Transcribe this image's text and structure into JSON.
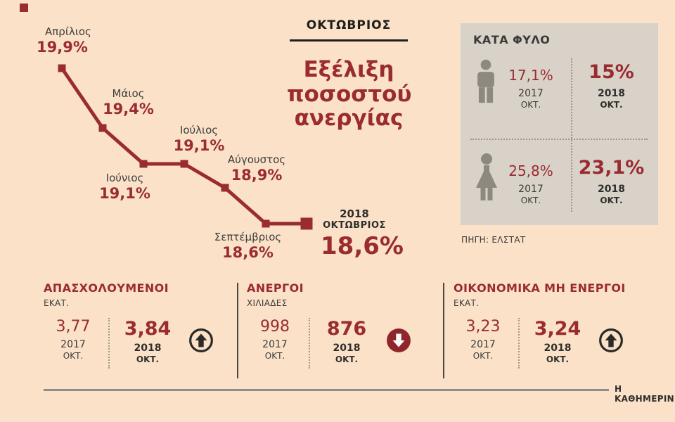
{
  "colors": {
    "accent": "#9a2c31",
    "background": "#fae1c8",
    "panel": "#d8d2c9",
    "dark_text": "#3b3a38"
  },
  "header": {
    "kicker": "ΟΚΤΩΒΡΙΟΣ",
    "title_lines": [
      "Εξέλιξη",
      "ποσοστού",
      "ανεργίας"
    ]
  },
  "chart_data": {
    "type": "line",
    "title": "Εξέλιξη ποσοστού ανεργίας",
    "unit": "%",
    "categories": [
      "Απρίλιος",
      "Μάιος",
      "Ιούνιος",
      "Ιούλιος",
      "Αύγουστος",
      "Σεπτέμβριος",
      "Οκτώβριος"
    ],
    "values": [
      19.9,
      19.4,
      19.1,
      19.1,
      18.9,
      18.6,
      18.6
    ],
    "value_labels": [
      "19,9%",
      "19,4%",
      "19,1%",
      "19,1%",
      "18,9%",
      "18,6%",
      "18,6%"
    ],
    "final_point": {
      "year": "2018",
      "month": "ΟΚΤΩΒΡΙΟΣ",
      "value_label": "18,6%"
    },
    "ylim": [
      18.4,
      20.0
    ],
    "grid": false,
    "legend": false,
    "line_color": "#9a2c31"
  },
  "gender_panel": {
    "title": "ΚΑΤΑ ΦΥΛΟ",
    "rows": [
      {
        "icon": "male-icon",
        "v2017": "17,1%",
        "y2017": "2017",
        "m2017": "ΟΚΤ.",
        "v2018": "15%",
        "y2018": "2018",
        "m2018": "ΟΚΤ."
      },
      {
        "icon": "female-icon",
        "v2017": "25,8%",
        "y2017": "2017",
        "m2017": "ΟΚΤ.",
        "v2018": "23,1%",
        "y2018": "2018",
        "m2018": "ΟΚΤ."
      }
    ],
    "source": "ΠΗΓΗ: ΕΛΣΤΑΤ"
  },
  "stats": [
    {
      "title": "ΑΠΑΣΧΟΛΟΥΜΕΝΟΙ",
      "unit": "ΕΚΑΤ.",
      "v2017": "3,77",
      "y2017": "2017",
      "m2017": "ΟΚΤ.",
      "v2018": "3,84",
      "y2018": "2018",
      "m2018": "ΟΚΤ.",
      "trend": "up"
    },
    {
      "title": "ΑΝΕΡΓΟΙ",
      "unit": "ΧΙΛΙΑΔΕΣ",
      "v2017": "998",
      "y2017": "2017",
      "m2017": "ΟΚΤ.",
      "v2018": "876",
      "y2018": "2018",
      "m2018": "ΟΚΤ.",
      "trend": "down"
    },
    {
      "title": "ΟΙΚΟΝΟΜΙΚΑ ΜΗ ΕΝΕΡΓΟΙ",
      "unit": "ΕΚΑΤ.",
      "v2017": "3,23",
      "y2017": "2017",
      "m2017": "ΟΚΤ.",
      "v2018": "3,24",
      "y2018": "2018",
      "m2018": "ΟΚΤ.",
      "trend": "up"
    }
  ],
  "footer": {
    "brand": "Η ΚΑΘΗΜΕΡΙΝΗ"
  }
}
